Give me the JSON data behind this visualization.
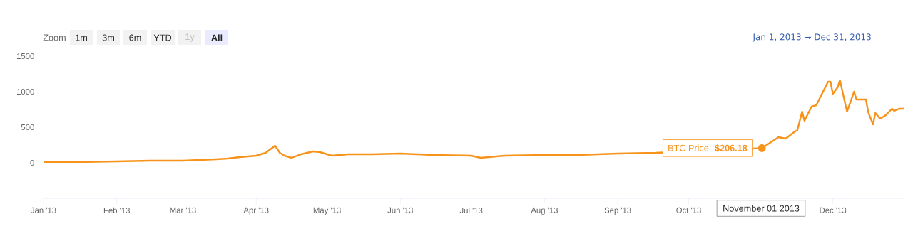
{
  "chart_data": {
    "type": "line",
    "x": [
      "2013-01-01",
      "2013-01-15",
      "2013-02-01",
      "2013-02-15",
      "2013-03-01",
      "2013-03-15",
      "2013-03-20",
      "2013-03-25",
      "2013-04-01",
      "2013-04-05",
      "2013-04-09",
      "2013-04-11",
      "2013-04-13",
      "2013-04-16",
      "2013-04-20",
      "2013-04-25",
      "2013-04-28",
      "2013-05-03",
      "2013-05-10",
      "2013-05-20",
      "2013-06-01",
      "2013-06-15",
      "2013-07-01",
      "2013-07-05",
      "2013-07-15",
      "2013-08-01",
      "2013-08-15",
      "2013-09-01",
      "2013-09-17",
      "2013-11-01",
      "2013-11-08",
      "2013-11-11",
      "2013-11-15",
      "2013-11-16",
      "2013-11-18",
      "2013-11-19",
      "2013-11-22",
      "2013-11-24",
      "2013-11-27",
      "2013-11-29",
      "2013-11-30",
      "2013-12-01",
      "2013-12-03",
      "2013-12-04",
      "2013-12-07",
      "2013-12-10",
      "2013-12-11",
      "2013-12-15",
      "2013-12-16",
      "2013-12-18",
      "2013-12-19",
      "2013-12-21",
      "2013-12-23",
      "2013-12-24",
      "2013-12-26",
      "2013-12-27",
      "2013-12-29",
      "2013-12-31"
    ],
    "series": [
      {
        "color": "#f7931a",
        "values": [
          10,
          10,
          20,
          30,
          30,
          50,
          60,
          80,
          100,
          140,
          240,
          140,
          100,
          70,
          120,
          160,
          150,
          100,
          120,
          120,
          130,
          110,
          100,
          70,
          100,
          110,
          110,
          130,
          140,
          206.18,
          360,
          340,
          440,
          460,
          720,
          590,
          790,
          810,
          1010,
          1140,
          1140,
          970,
          1060,
          1160,
          720,
          1000,
          890,
          890,
          710,
          540,
          700,
          620,
          660,
          690,
          760,
          730,
          760,
          760
        ]
      }
    ],
    "xlim": [
      "2013-01-01",
      "2013-12-31"
    ],
    "xticks": [
      {
        "value": "2013-01-01",
        "label": "Jan '13"
      },
      {
        "value": "2013-02-01",
        "label": "Feb '13"
      },
      {
        "value": "2013-03-01",
        "label": "Mar '13"
      },
      {
        "value": "2013-04-01",
        "label": "Apr '13"
      },
      {
        "value": "2013-05-01",
        "label": "May '13"
      },
      {
        "value": "2013-06-01",
        "label": "Jun '13"
      },
      {
        "value": "2013-07-01",
        "label": "Jul '13"
      },
      {
        "value": "2013-08-01",
        "label": "Aug '13"
      },
      {
        "value": "2013-09-01",
        "label": "Sep '13"
      },
      {
        "value": "2013-10-01",
        "label": "Oct '13"
      },
      {
        "value": "2013-11-01",
        "label": null
      },
      {
        "value": "2013-12-01",
        "label": "Dec '13"
      }
    ],
    "ylim": [
      -500,
      1500
    ],
    "yticks": [
      0,
      500,
      1000,
      1500
    ],
    "grid": false,
    "marker": "none",
    "line_style": "solid",
    "annotations": [
      "Zoom",
      "1m",
      "3m",
      "6m",
      "YTD",
      "1y",
      "All",
      "Jan 1, 2013 → Dec 31, 2013",
      {
        "text": "BTC Price: **$206.18**",
        "x": "2013-11-01",
        "y": 206.18
      },
      "November 01 2013"
    ]
  }
}
